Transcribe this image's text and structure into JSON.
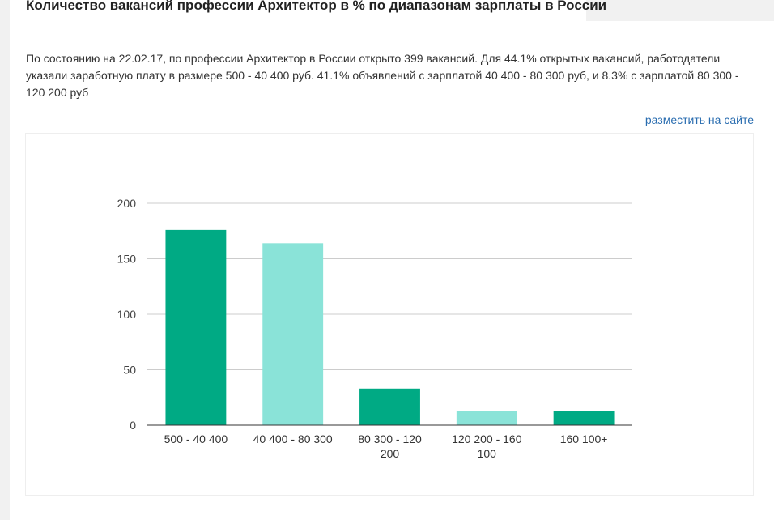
{
  "page": {
    "title": "Количество вакансий профессии Архитектор в % по диапазонам зарплаты в России",
    "description": "По состоянию на 22.02.17, по профессии Архитектор в России открыто 399 вакансий. Для 44.1% открытых вакансий, работодатели указали заработную плату в размере 500 - 40 400 руб. 41.1% объявлений с зарплатой 40 400 - 80 300 руб, и 8.3% с зарплатой 80 300 - 120 200 руб",
    "place_link": "разместить на сайте"
  },
  "chart_data": {
    "type": "bar",
    "categories": [
      [
        "500 - 40 400"
      ],
      [
        "40 400 - 80 300"
      ],
      [
        "80 300 - 120",
        "200"
      ],
      [
        "120 200 - 160",
        "100"
      ],
      [
        "160 100+"
      ]
    ],
    "values": [
      176,
      164,
      33,
      13,
      13
    ],
    "colors": [
      "#00aa84",
      "#8ae3d8",
      "#00aa84",
      "#8ae3d8",
      "#00aa84"
    ],
    "yticks": [
      0,
      50,
      100,
      150,
      200
    ],
    "ylim": [
      0,
      200
    ],
    "grid": true,
    "legend": "none"
  }
}
